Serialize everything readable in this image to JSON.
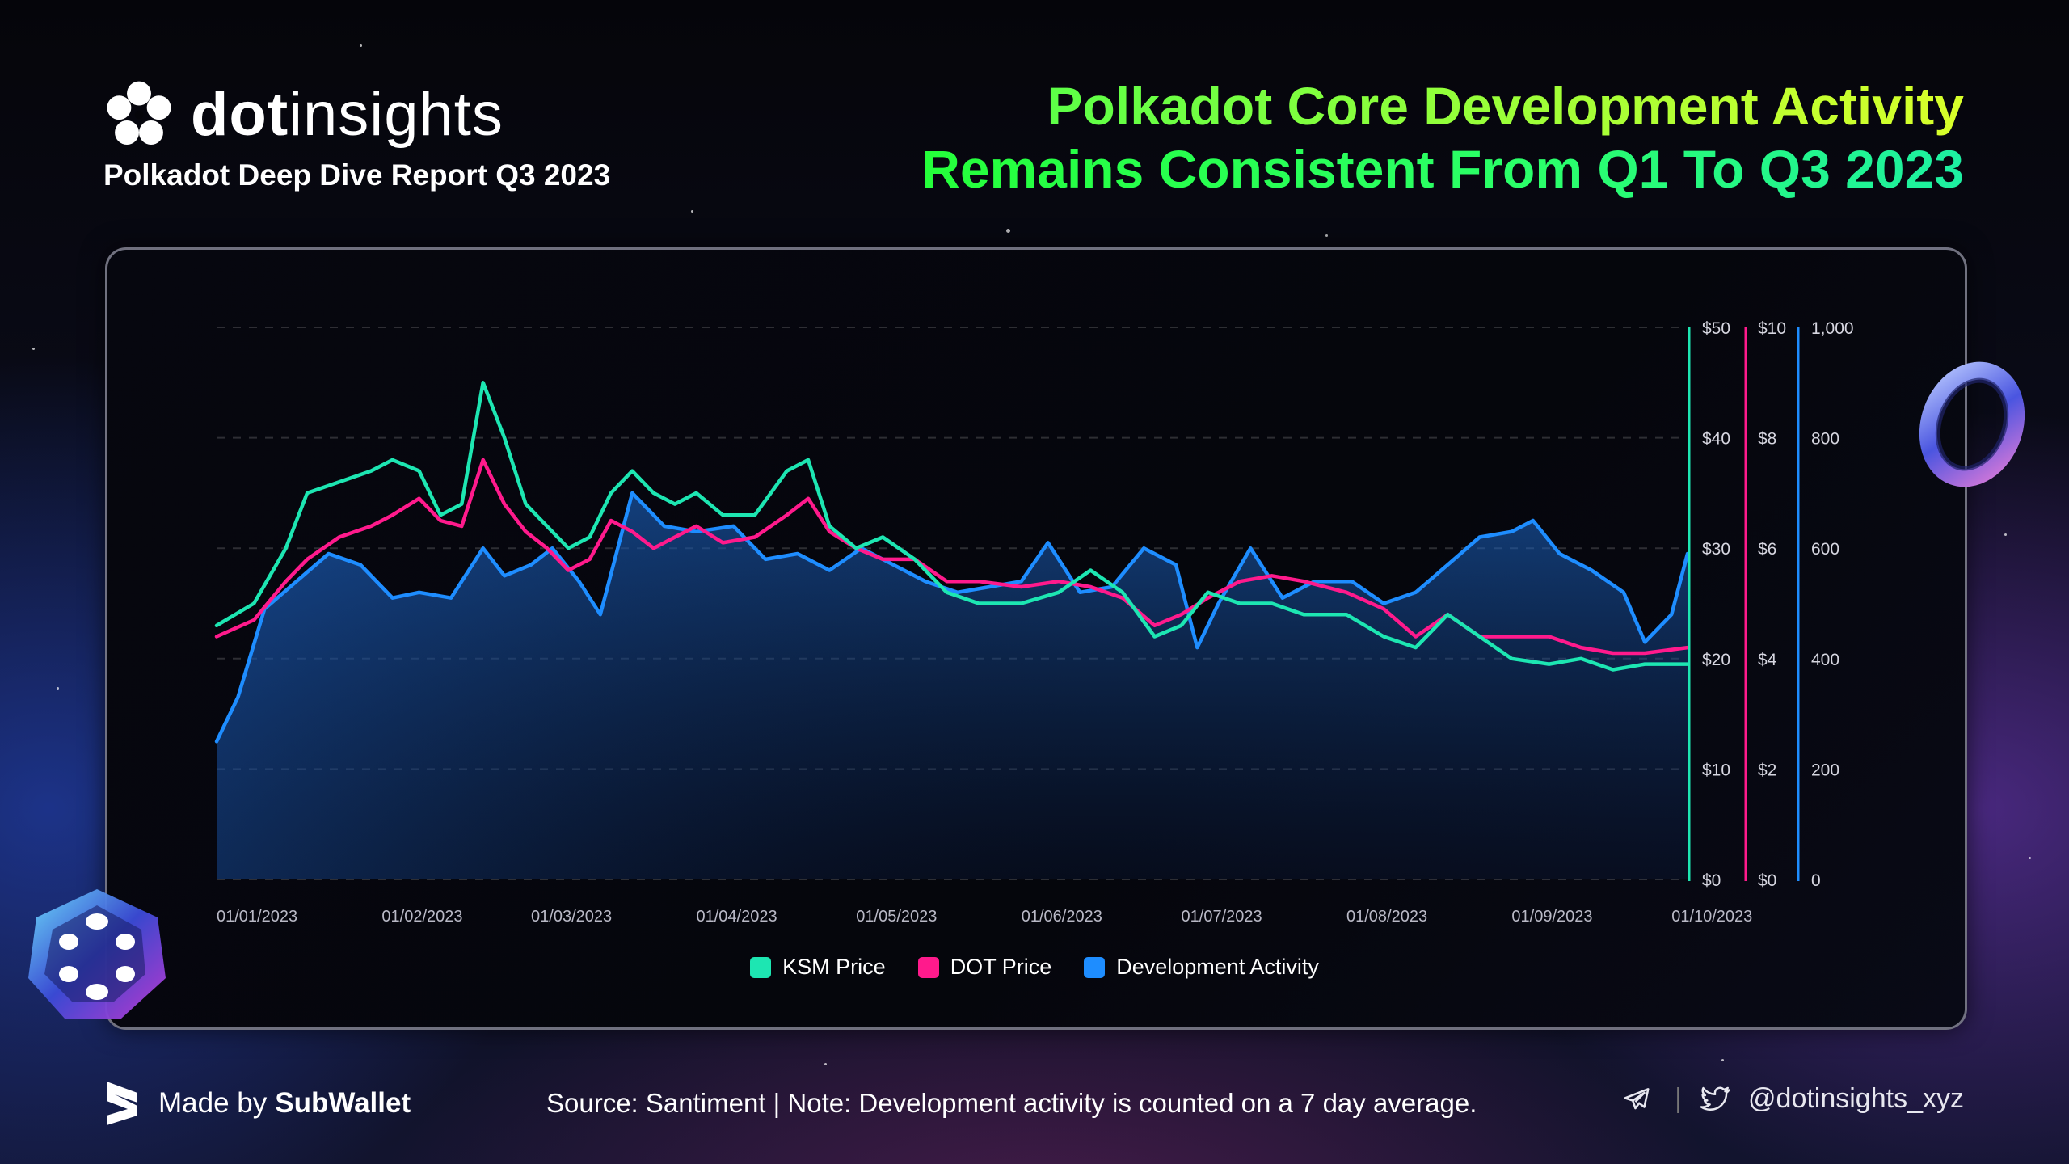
{
  "brand": {
    "name_bold": "dot",
    "name_rest": "insights",
    "subtitle": "Polkadot Deep Dive Report Q3 2023"
  },
  "headline": {
    "line1": "Polkadot Core Development Activity",
    "line2": "Remains Consistent From Q1 To Q3 2023"
  },
  "footer": {
    "made_by_prefix": "Made by",
    "made_by_name": "SubWallet",
    "source": "Source: Santiment | Note: Development activity is counted on a 7 day average.",
    "handle": "@dotinsights_xyz",
    "icons": [
      "telegram-icon",
      "twitter-icon",
      "subwallet-logo-icon"
    ]
  },
  "colors": {
    "ksm": "#1de6b2",
    "dot": "#ff1a8c",
    "dev": "#1e8dff",
    "headline_from": "#4bff4b",
    "headline_to": "#1df0a2"
  },
  "chart_data": {
    "type": "line",
    "x_tick_labels": [
      "01/01/2023",
      "01/02/2023",
      "01/03/2023",
      "01/04/2023",
      "01/05/2023",
      "01/06/2023",
      "01/07/2023",
      "01/08/2023",
      "01/09/2023",
      "01/10/2023"
    ],
    "x_range": [
      "2023-01-01",
      "2023-10-04"
    ],
    "axes": [
      {
        "id": "ksm",
        "ticks": [
          "$0",
          "$10",
          "$20",
          "$30",
          "$40",
          "$50"
        ],
        "range": [
          0,
          50
        ],
        "color": "#1de6b2"
      },
      {
        "id": "dot",
        "ticks": [
          "$0",
          "$2",
          "$4",
          "$6",
          "$8",
          "$10"
        ],
        "range": [
          0,
          10
        ],
        "color": "#ff1a8c"
      },
      {
        "id": "dev",
        "ticks": [
          "0",
          "200",
          "400",
          "600",
          "800",
          "1,000"
        ],
        "range": [
          0,
          1000
        ],
        "color": "#1e8dff"
      }
    ],
    "grid": true,
    "legend_position": "bottom-center",
    "series": [
      {
        "name": "KSM Price",
        "axis": "ksm",
        "color": "#1de6b2",
        "points": [
          [
            "2023-01-01",
            23
          ],
          [
            "2023-01-08",
            25
          ],
          [
            "2023-01-14",
            30
          ],
          [
            "2023-01-18",
            35
          ],
          [
            "2023-01-24",
            36
          ],
          [
            "2023-01-30",
            37
          ],
          [
            "2023-02-03",
            38
          ],
          [
            "2023-02-08",
            37
          ],
          [
            "2023-02-12",
            33
          ],
          [
            "2023-02-16",
            34
          ],
          [
            "2023-02-20",
            45
          ],
          [
            "2023-02-24",
            40
          ],
          [
            "2023-02-28",
            34
          ],
          [
            "2023-03-04",
            32
          ],
          [
            "2023-03-08",
            30
          ],
          [
            "2023-03-12",
            31
          ],
          [
            "2023-03-16",
            35
          ],
          [
            "2023-03-20",
            37
          ],
          [
            "2023-03-24",
            35
          ],
          [
            "2023-03-28",
            34
          ],
          [
            "2023-04-01",
            35
          ],
          [
            "2023-04-06",
            33
          ],
          [
            "2023-04-12",
            33
          ],
          [
            "2023-04-18",
            37
          ],
          [
            "2023-04-22",
            38
          ],
          [
            "2023-04-26",
            32
          ],
          [
            "2023-05-01",
            30
          ],
          [
            "2023-05-06",
            31
          ],
          [
            "2023-05-12",
            29
          ],
          [
            "2023-05-18",
            26
          ],
          [
            "2023-05-24",
            25
          ],
          [
            "2023-06-01",
            25
          ],
          [
            "2023-06-08",
            26
          ],
          [
            "2023-06-14",
            28
          ],
          [
            "2023-06-20",
            26
          ],
          [
            "2023-06-26",
            22
          ],
          [
            "2023-07-01",
            23
          ],
          [
            "2023-07-06",
            26
          ],
          [
            "2023-07-12",
            25
          ],
          [
            "2023-07-18",
            25
          ],
          [
            "2023-07-24",
            24
          ],
          [
            "2023-08-01",
            24
          ],
          [
            "2023-08-08",
            22
          ],
          [
            "2023-08-14",
            21
          ],
          [
            "2023-08-20",
            24
          ],
          [
            "2023-08-26",
            22
          ],
          [
            "2023-09-01",
            20
          ],
          [
            "2023-09-08",
            19.5
          ],
          [
            "2023-09-14",
            20
          ],
          [
            "2023-09-20",
            19
          ],
          [
            "2023-09-26",
            19.5
          ],
          [
            "2023-10-04",
            19.5
          ]
        ]
      },
      {
        "name": "DOT Price",
        "axis": "dot",
        "color": "#ff1a8c",
        "points": [
          [
            "2023-01-01",
            4.4
          ],
          [
            "2023-01-08",
            4.7
          ],
          [
            "2023-01-14",
            5.4
          ],
          [
            "2023-01-18",
            5.8
          ],
          [
            "2023-01-24",
            6.2
          ],
          [
            "2023-01-30",
            6.4
          ],
          [
            "2023-02-03",
            6.6
          ],
          [
            "2023-02-08",
            6.9
          ],
          [
            "2023-02-12",
            6.5
          ],
          [
            "2023-02-16",
            6.4
          ],
          [
            "2023-02-20",
            7.6
          ],
          [
            "2023-02-24",
            6.8
          ],
          [
            "2023-02-28",
            6.3
          ],
          [
            "2023-03-04",
            6.0
          ],
          [
            "2023-03-08",
            5.6
          ],
          [
            "2023-03-12",
            5.8
          ],
          [
            "2023-03-16",
            6.5
          ],
          [
            "2023-03-20",
            6.3
          ],
          [
            "2023-03-24",
            6.0
          ],
          [
            "2023-03-28",
            6.2
          ],
          [
            "2023-04-01",
            6.4
          ],
          [
            "2023-04-06",
            6.1
          ],
          [
            "2023-04-12",
            6.2
          ],
          [
            "2023-04-18",
            6.6
          ],
          [
            "2023-04-22",
            6.9
          ],
          [
            "2023-04-26",
            6.3
          ],
          [
            "2023-05-01",
            6.0
          ],
          [
            "2023-05-06",
            5.8
          ],
          [
            "2023-05-12",
            5.8
          ],
          [
            "2023-05-18",
            5.4
          ],
          [
            "2023-05-24",
            5.4
          ],
          [
            "2023-06-01",
            5.3
          ],
          [
            "2023-06-08",
            5.4
          ],
          [
            "2023-06-14",
            5.3
          ],
          [
            "2023-06-20",
            5.1
          ],
          [
            "2023-06-26",
            4.6
          ],
          [
            "2023-07-01",
            4.8
          ],
          [
            "2023-07-06",
            5.1
          ],
          [
            "2023-07-12",
            5.4
          ],
          [
            "2023-07-18",
            5.5
          ],
          [
            "2023-07-24",
            5.4
          ],
          [
            "2023-08-01",
            5.2
          ],
          [
            "2023-08-08",
            4.9
          ],
          [
            "2023-08-14",
            4.4
          ],
          [
            "2023-08-20",
            4.8
          ],
          [
            "2023-08-26",
            4.4
          ],
          [
            "2023-09-01",
            4.4
          ],
          [
            "2023-09-08",
            4.4
          ],
          [
            "2023-09-14",
            4.2
          ],
          [
            "2023-09-20",
            4.1
          ],
          [
            "2023-09-26",
            4.1
          ],
          [
            "2023-10-04",
            4.2
          ]
        ]
      },
      {
        "name": "Development Activity",
        "axis": "dev",
        "color": "#1e8dff",
        "points": [
          [
            "2023-01-01",
            250
          ],
          [
            "2023-01-05",
            330
          ],
          [
            "2023-01-10",
            490
          ],
          [
            "2023-01-16",
            540
          ],
          [
            "2023-01-22",
            590
          ],
          [
            "2023-01-28",
            570
          ],
          [
            "2023-02-03",
            510
          ],
          [
            "2023-02-08",
            520
          ],
          [
            "2023-02-14",
            510
          ],
          [
            "2023-02-20",
            600
          ],
          [
            "2023-02-24",
            550
          ],
          [
            "2023-03-01",
            570
          ],
          [
            "2023-03-05",
            600
          ],
          [
            "2023-03-10",
            540
          ],
          [
            "2023-03-14",
            480
          ],
          [
            "2023-03-20",
            700
          ],
          [
            "2023-03-26",
            640
          ],
          [
            "2023-04-01",
            630
          ],
          [
            "2023-04-08",
            640
          ],
          [
            "2023-04-14",
            580
          ],
          [
            "2023-04-20",
            590
          ],
          [
            "2023-04-26",
            560
          ],
          [
            "2023-05-02",
            600
          ],
          [
            "2023-05-08",
            570
          ],
          [
            "2023-05-14",
            540
          ],
          [
            "2023-05-20",
            520
          ],
          [
            "2023-05-26",
            530
          ],
          [
            "2023-06-01",
            540
          ],
          [
            "2023-06-06",
            610
          ],
          [
            "2023-06-12",
            520
          ],
          [
            "2023-06-18",
            530
          ],
          [
            "2023-06-24",
            600
          ],
          [
            "2023-06-30",
            570
          ],
          [
            "2023-07-04",
            420
          ],
          [
            "2023-07-08",
            500
          ],
          [
            "2023-07-14",
            600
          ],
          [
            "2023-07-20",
            510
          ],
          [
            "2023-07-26",
            540
          ],
          [
            "2023-08-02",
            540
          ],
          [
            "2023-08-08",
            500
          ],
          [
            "2023-08-14",
            520
          ],
          [
            "2023-08-20",
            570
          ],
          [
            "2023-08-26",
            620
          ],
          [
            "2023-09-01",
            630
          ],
          [
            "2023-09-05",
            650
          ],
          [
            "2023-09-10",
            590
          ],
          [
            "2023-09-16",
            560
          ],
          [
            "2023-09-22",
            520
          ],
          [
            "2023-09-26",
            430
          ],
          [
            "2023-10-01",
            480
          ],
          [
            "2023-10-04",
            590
          ]
        ]
      }
    ]
  }
}
